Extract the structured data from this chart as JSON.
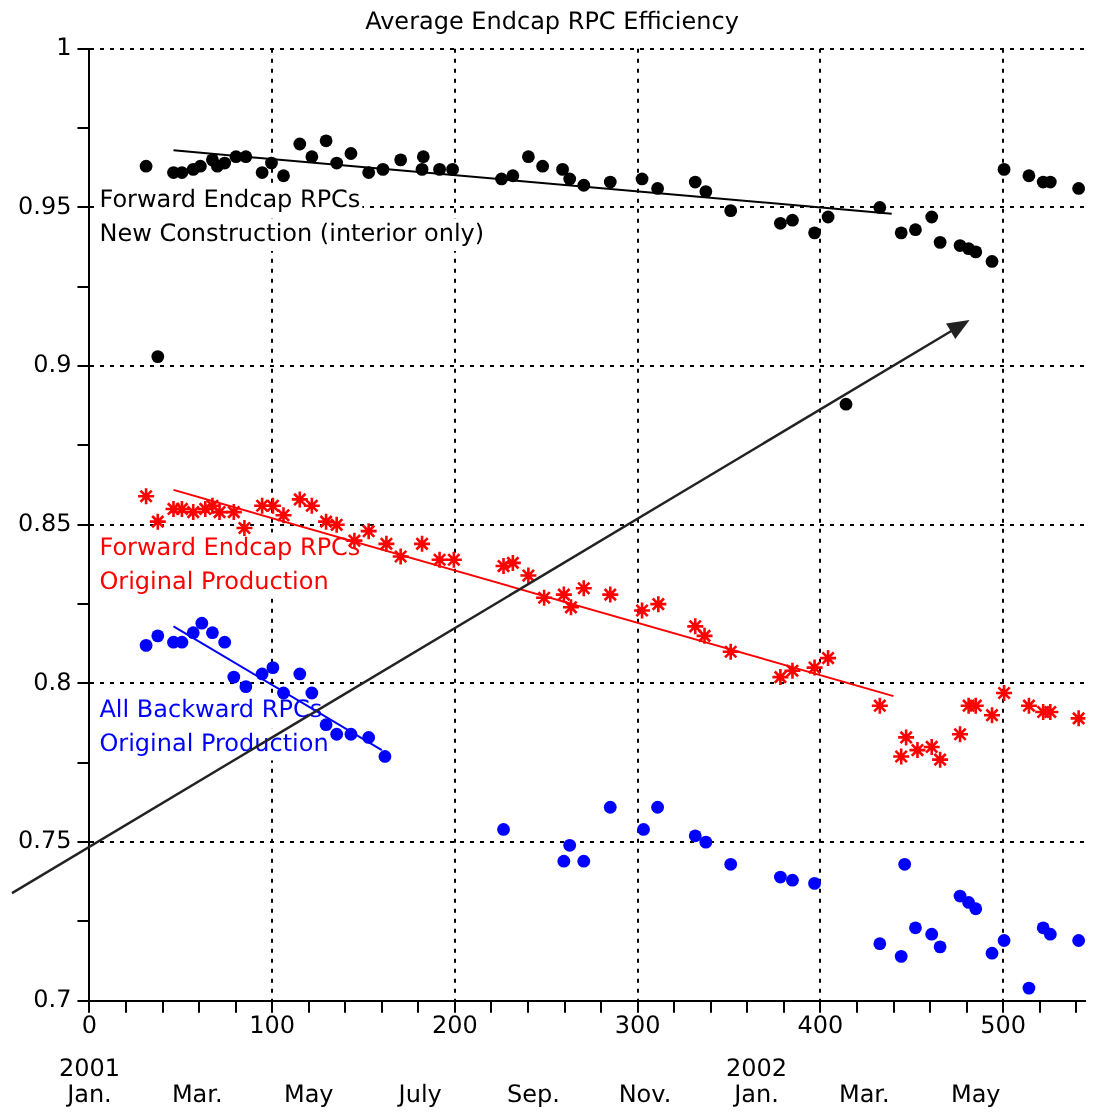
{
  "chart_data": {
    "type": "scatter",
    "title": "Average Endcap RPC Efficiency",
    "xlim": [
      0,
      545
    ],
    "xticks": [
      0,
      {
        "value": 20,
        "label": null
      },
      {
        "value": 40,
        "label": null
      },
      {
        "value": 60,
        "label": null
      },
      {
        "value": 80,
        "label": null
      },
      100,
      {
        "value": 120,
        "label": null
      },
      {
        "value": 140,
        "label": null
      },
      {
        "value": 160,
        "label": null
      },
      {
        "value": 180,
        "label": null
      },
      200,
      {
        "value": 220,
        "label": null
      },
      {
        "value": 240,
        "label": null
      },
      {
        "value": 260,
        "label": null
      },
      {
        "value": 280,
        "label": null
      },
      300,
      {
        "value": 320,
        "label": null
      },
      {
        "value": 340,
        "label": null
      },
      {
        "value": 360,
        "label": null
      },
      {
        "value": 380,
        "label": null
      },
      400,
      {
        "value": 420,
        "label": null
      },
      {
        "value": 440,
        "label": null
      },
      {
        "value": 460,
        "label": null
      },
      {
        "value": 480,
        "label": null
      },
      500,
      {
        "value": 520,
        "label": null
      },
      {
        "value": 540,
        "label": null
      }
    ],
    "x2lim": [
      "2001-01-01",
      "2002-06-30"
    ],
    "x2ticks": [
      {
        "value": "2001-01-01",
        "label": "2001\nJan."
      },
      {
        "value": "2001-03-01",
        "label": "Mar."
      },
      {
        "value": "2001-05-01",
        "label": "May"
      },
      {
        "value": "2001-07-01",
        "label": "July"
      },
      {
        "value": "2001-09-01",
        "label": "Sep."
      },
      {
        "value": "2001-11-01",
        "label": "Nov."
      },
      {
        "value": "2002-01-01",
        "label": "2002\nJan."
      },
      {
        "value": "2002-03-01",
        "label": "Mar."
      },
      {
        "value": "2002-05-01",
        "label": "May"
      }
    ],
    "ylim": [
      0.7,
      1
    ],
    "yticks": [
      0.7,
      {
        "value": 0.725,
        "label": null
      },
      0.75,
      {
        "value": 0.775,
        "label": null
      },
      0.8,
      {
        "value": 0.825,
        "label": null
      },
      0.85,
      {
        "value": 0.875,
        "label": null
      },
      0.9,
      {
        "value": 0.925,
        "label": null
      },
      0.95,
      {
        "value": 0.975,
        "label": null
      },
      1
    ],
    "grid": true,
    "legend": false,
    "series": [
      {
        "name": "Forward Endcap RPCs\nNew Construction (interior only)",
        "color": "#000000",
        "marker": "circle",
        "x": [
          31,
          37.4,
          46,
          50.6,
          56.8,
          60.7,
          67.3,
          70,
          74,
          80.2,
          85.6,
          94.5,
          99.6,
          106.2,
          115.1,
          121.7,
          129.5,
          135.3,
          143.1,
          152.8,
          160.6,
          170.3,
          182,
          182.7,
          191.6,
          198.7,
          225.5,
          231.7,
          240.2,
          248,
          258.9,
          262.8,
          270.5,
          285,
          302.4,
          310.9,
          331.5,
          337.3,
          350.9,
          378.1,
          384.7,
          396.8,
          404.2,
          414,
          432.5,
          444.2,
          452,
          460.9,
          465.5,
          476.4,
          481.1,
          485,
          493.9,
          500.5,
          514.1,
          521.9,
          525.8,
          541.3
        ],
        "values": [
          0.963,
          0.903,
          0.961,
          0.961,
          0.962,
          0.963,
          0.965,
          0.963,
          0.964,
          0.966,
          0.966,
          0.961,
          0.964,
          0.96,
          0.97,
          0.966,
          0.971,
          0.964,
          0.967,
          0.961,
          0.962,
          0.965,
          0.962,
          0.966,
          0.962,
          0.962,
          0.959,
          0.96,
          0.966,
          0.963,
          0.962,
          0.959,
          0.957,
          0.958,
          0.959,
          0.956,
          0.958,
          0.955,
          0.949,
          0.945,
          0.946,
          0.942,
          0.947,
          0.888,
          0.95,
          0.942,
          0.943,
          0.947,
          0.939,
          0.938,
          0.937,
          0.936,
          0.933,
          0.962,
          0.96,
          0.958,
          0.958,
          0.956
        ]
      },
      {
        "type": "line",
        "color": "#000000",
        "marker": "none",
        "x": [
          46,
          439
        ],
        "values": [
          0.968,
          0.948
        ]
      },
      {
        "name": "Forward Endcap RPCs\nOriginal Production",
        "color": "#ff0000",
        "marker": "cross",
        "x": [
          31,
          37.4,
          46,
          50.6,
          56.8,
          63.4,
          67.3,
          71.2,
          79,
          84.8,
          94.5,
          100.4,
          106.2,
          115.1,
          121.7,
          129.5,
          135.3,
          145,
          152.8,
          162.5,
          170.3,
          182,
          191.6,
          199.4,
          226.6,
          231.7,
          240.2,
          248.8,
          259.6,
          263.5,
          270.5,
          285,
          302.4,
          311.3,
          331.5,
          336.6,
          350.9,
          378.1,
          384.7,
          396.8,
          404.2,
          432.5,
          444.2,
          446.9,
          453.1,
          460.9,
          465.5,
          476.4,
          481.1,
          485,
          493.9,
          500.5,
          514.1,
          521.9,
          525.8,
          541.3
        ],
        "values": [
          0.859,
          0.851,
          0.855,
          0.855,
          0.854,
          0.855,
          0.856,
          0.854,
          0.854,
          0.849,
          0.856,
          0.856,
          0.853,
          0.858,
          0.856,
          0.851,
          0.85,
          0.845,
          0.848,
          0.844,
          0.84,
          0.844,
          0.839,
          0.839,
          0.837,
          0.838,
          0.834,
          0.827,
          0.828,
          0.824,
          0.83,
          0.828,
          0.823,
          0.825,
          0.818,
          0.815,
          0.81,
          0.802,
          0.804,
          0.805,
          0.808,
          0.793,
          0.777,
          0.783,
          0.779,
          0.78,
          0.776,
          0.784,
          0.793,
          0.793,
          0.79,
          0.797,
          0.793,
          0.791,
          0.791,
          0.789
        ]
      },
      {
        "type": "line",
        "color": "#ff0000",
        "marker": "none",
        "x": [
          46,
          440
        ],
        "values": [
          0.861,
          0.796
        ]
      },
      {
        "name": "All Backward RPCs\nOriginal Production",
        "color": "#0000ff",
        "marker": "circle",
        "x": [
          31,
          37.4,
          46,
          50.6,
          56.8,
          61.5,
          67.3,
          74,
          79,
          85.6,
          94.5,
          100.4,
          106.2,
          115.1,
          121.7,
          129.5,
          135.3,
          143.1,
          152.8,
          161.7,
          226.6,
          259.6,
          262.8,
          270.5,
          285,
          303.2,
          310.9,
          331.5,
          337.3,
          350.9,
          378.1,
          384.7,
          396.8,
          432.5,
          444.2,
          446.1,
          452,
          460.9,
          465.5,
          476.4,
          481.1,
          485,
          493.9,
          500.5,
          514.1,
          521.9,
          525.8,
          541.3
        ],
        "values": [
          0.812,
          0.815,
          0.813,
          0.813,
          0.816,
          0.819,
          0.816,
          0.813,
          0.802,
          0.799,
          0.803,
          0.805,
          0.797,
          0.803,
          0.797,
          0.787,
          0.784,
          0.784,
          0.783,
          0.777,
          0.754,
          0.744,
          0.749,
          0.744,
          0.761,
          0.754,
          0.761,
          0.752,
          0.75,
          0.743,
          0.739,
          0.738,
          0.737,
          0.718,
          0.714,
          0.743,
          0.723,
          0.721,
          0.717,
          0.733,
          0.731,
          0.729,
          0.715,
          0.719,
          0.704,
          0.723,
          0.721,
          0.719
        ]
      },
      {
        "type": "line",
        "color": "#0000ff",
        "marker": "none",
        "x": [
          46,
          160
        ],
        "values": [
          0.818,
          0.779
        ]
      }
    ]
  }
}
